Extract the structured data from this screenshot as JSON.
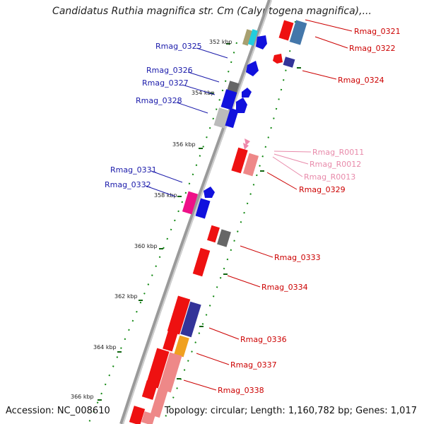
{
  "title": "Candidatus Ruthia magnifica str. Cm (Calyptogena magnifica),...",
  "accession": "Accession: NC_008610",
  "summary": "Topology: circular; Length: 1,160,782 bp; Genes: 1,017",
  "colors": {
    "forward_label": "#1a1aaa",
    "reverse_label": "#cc0000",
    "rna_label": "#e88aaa",
    "backbone": "#888888",
    "tick_minor": "#118811",
    "tick_major": "#116611"
  },
  "scale_labels": [
    "352 kbp",
    "354 kbp",
    "356 kbp",
    "358 kbp",
    "360 kbp",
    "362 kbp",
    "364 kbp",
    "366 kbp"
  ],
  "gene_labels": {
    "forward": [
      "Rmag_0325",
      "Rmag_0326",
      "Rmag_0327",
      "Rmag_0328",
      "Rmag_0331",
      "Rmag_0332"
    ],
    "reverse": [
      "Rmag_0321",
      "Rmag_0322",
      "Rmag_0324",
      "Rmag_0329",
      "Rmag_0333",
      "Rmag_0334",
      "Rmag_0336",
      "Rmag_0337",
      "Rmag_0338"
    ],
    "rna": [
      "Rmag_R0011",
      "Rmag_R0012",
      "Rmag_R0013"
    ]
  }
}
